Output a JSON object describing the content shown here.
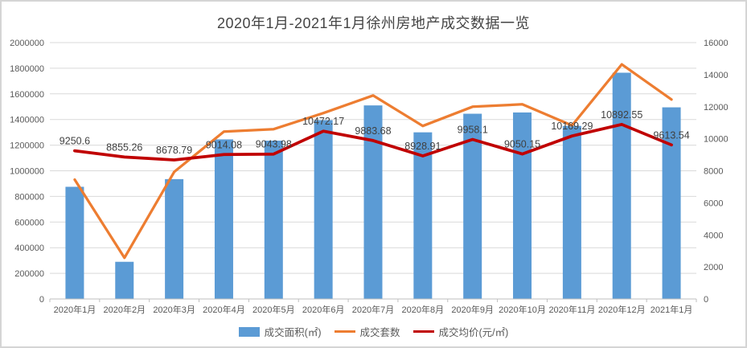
{
  "title": "2020年1月-2021年1月徐州房地产成交数据一览",
  "chart_data": {
    "type": "bar",
    "subtype": "combo bar + two lines, dual y-axis",
    "title": "2020年1月-2021年1月徐州房地产成交数据一览",
    "categories": [
      "2020年1月",
      "2020年2月",
      "2020年3月",
      "2020年4月",
      "2020年5月",
      "2020年6月",
      "2020年7月",
      "2020年8月",
      "2020年9月",
      "2020年10月",
      "2020年11月",
      "2020年12月",
      "2021年1月"
    ],
    "series": [
      {
        "name": "成交面积(㎡)",
        "type": "bar",
        "axis": "left",
        "color": "#5B9BD5",
        "values": [
          875000,
          290000,
          935000,
          1245000,
          1235000,
          1395000,
          1510000,
          1300000,
          1445000,
          1455000,
          1350000,
          1765000,
          1495000
        ]
      },
      {
        "name": "成交套数",
        "type": "line",
        "axis": "right",
        "color": "#ED7D31",
        "values": [
          7450,
          2570,
          7930,
          10450,
          10600,
          11600,
          12700,
          10800,
          12000,
          12150,
          10830,
          14640,
          12450
        ]
      },
      {
        "name": "成交均价(元/㎡)",
        "type": "line",
        "axis": "right",
        "color": "#C00000",
        "values": [
          9250.6,
          8855.26,
          8678.79,
          9014.08,
          9043.98,
          10472.17,
          9883.68,
          8928.91,
          9958.1,
          9050.15,
          10169.29,
          10892.55,
          9613.54
        ],
        "data_labels": [
          "9250.6",
          "8855.26",
          "8678.79",
          "9014.08",
          "9043.98",
          "10472.17",
          "9883.68",
          "8928.91",
          "9958.1",
          "9050.15",
          "10169.29",
          "10892.55",
          "9613.54"
        ]
      }
    ],
    "left_axis": {
      "min": 0,
      "max": 2000000,
      "step": 200000,
      "tick_labels": [
        "0",
        "200000",
        "400000",
        "600000",
        "800000",
        "1000000",
        "1200000",
        "1400000",
        "1600000",
        "1800000",
        "2000000"
      ]
    },
    "right_axis": {
      "min": 0,
      "max": 16000,
      "step": 2000,
      "tick_labels": [
        "0",
        "2000",
        "4000",
        "6000",
        "8000",
        "10000",
        "12000",
        "14000",
        "16000"
      ]
    },
    "grid": true,
    "legend_position": "bottom"
  },
  "colors": {
    "bar_blue": "#5B9BD5",
    "line_orange": "#ED7D31",
    "line_red": "#C00000",
    "gridline": "#D9D9D9",
    "axis_line": "#BFBFBF",
    "tick_text": "#595959",
    "title_text": "#444444",
    "data_label_text": "#404040",
    "frame_border": "#D5D5D5"
  }
}
